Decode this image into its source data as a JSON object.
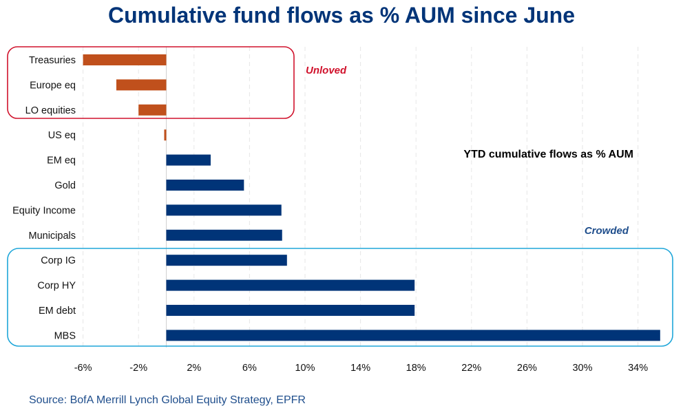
{
  "chart_data": {
    "type": "bar",
    "orientation": "horizontal",
    "title": "Cumulative fund flows as % AUM since June",
    "xlabel": "",
    "ylabel": "",
    "categories": [
      "Treasuries",
      "Europe eq",
      "LO equities",
      "US eq",
      "EM eq",
      "Gold",
      "Equity Income",
      "Municipals",
      "Corp IG",
      "Corp HY",
      "EM debt",
      "MBS"
    ],
    "values": [
      -6.0,
      -3.6,
      -2.0,
      -0.15,
      3.2,
      5.6,
      8.3,
      8.35,
      8.7,
      17.9,
      17.9,
      35.6
    ],
    "unit": "%",
    "xlim": [
      -7.0,
      36.5
    ],
    "xticks": [
      -6,
      -2,
      2,
      6,
      10,
      14,
      18,
      22,
      26,
      30,
      34
    ],
    "xtick_labels": [
      "-6%",
      "-2%",
      "2%",
      "6%",
      "10%",
      "14%",
      "18%",
      "22%",
      "26%",
      "30%",
      "34%"
    ],
    "grid": "vertical dashed",
    "colors": {
      "negative": "#c0501c",
      "positive": "#003478",
      "unloved_box": "#d0112b",
      "crowded_box": "#1ea6d9",
      "title": "#003478"
    },
    "annotations": {
      "unloved": "Unloved",
      "crowded": "Crowded",
      "ytd": "YTD cumulative flows as % AUM"
    },
    "groups": {
      "unloved": [
        "Treasuries",
        "Europe eq",
        "LO equities"
      ],
      "crowded": [
        "Corp IG",
        "Corp HY",
        "EM debt",
        "MBS"
      ]
    }
  },
  "footer": {
    "source": "Source:  BofA Merrill Lynch Global Equity Strategy, EPFR"
  }
}
